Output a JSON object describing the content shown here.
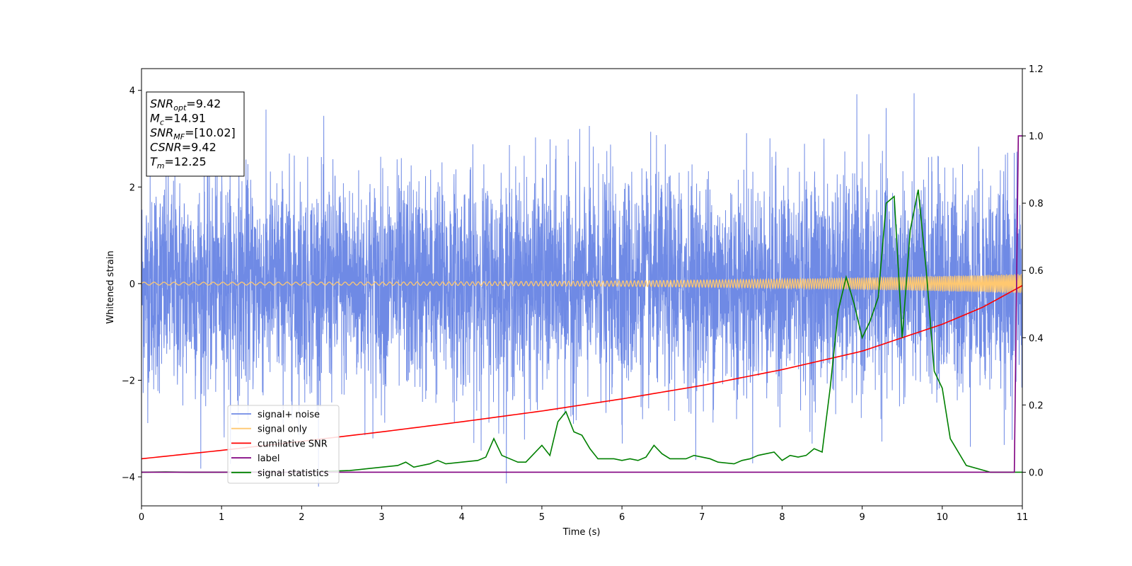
{
  "chart_data": {
    "type": "line",
    "xlabel": "Time (s)",
    "ylabel": "Whitened strain",
    "xlim": [
      0,
      11
    ],
    "ylim_left": [
      -4.6,
      4.45
    ],
    "ylim_right": [
      -0.1,
      1.2
    ],
    "x_ticks": [
      "0",
      "1",
      "2",
      "3",
      "4",
      "5",
      "6",
      "7",
      "8",
      "9",
      "10",
      "11"
    ],
    "y_ticks_left": [
      "-4",
      "-2",
      "0",
      "2",
      "4"
    ],
    "y_ticks_right": [
      "0.0",
      "0.2",
      "0.4",
      "0.6",
      "0.8",
      "1.0",
      "1.2"
    ],
    "info_box": [
      {
        "name": "SNR",
        "sub": "opt",
        "value": "=9.42"
      },
      {
        "name": "M",
        "sub": "c",
        "value": "=14.91"
      },
      {
        "name": "SNR",
        "sub": "MF",
        "value": "=[10.02]"
      },
      {
        "name": "CSNR",
        "sub": "",
        "value": "=9.42"
      },
      {
        "name": "T",
        "sub": "m",
        "value": "=12.25"
      }
    ],
    "legend_location": "lower-left",
    "series": [
      {
        "name": "signal+ noise",
        "axis": "left",
        "color": "#6f8ae5",
        "description_values": {
          "std": 1.0,
          "min": -4.2,
          "max": 4.02
        }
      },
      {
        "name": "signal only",
        "axis": "left",
        "color": "#ffc870",
        "amplitude_start": 0.03,
        "amplitude_end": 0.2
      },
      {
        "name": "cumilative SNR",
        "axis": "right",
        "color": "#ff0000",
        "x": [
          0,
          1,
          2,
          3,
          4,
          5,
          6,
          7,
          8,
          9,
          10,
          10.5,
          11
        ],
        "y": [
          0.04,
          0.065,
          0.092,
          0.12,
          0.15,
          0.182,
          0.218,
          0.258,
          0.305,
          0.36,
          0.44,
          0.49,
          0.555
        ]
      },
      {
        "name": "label",
        "axis": "right",
        "color": "#800080",
        "x": [
          0,
          10.9,
          10.95,
          11
        ],
        "y": [
          0.0,
          0.0,
          1.0,
          1.0
        ]
      },
      {
        "name": "signal statistics",
        "axis": "right",
        "color": "#008000",
        "x": [
          0,
          0.3,
          0.6,
          1.0,
          1.4,
          1.8,
          2.2,
          2.6,
          2.8,
          3.0,
          3.2,
          3.3,
          3.4,
          3.6,
          3.7,
          3.8,
          4.0,
          4.2,
          4.3,
          4.4,
          4.5,
          4.6,
          4.7,
          4.8,
          5.0,
          5.1,
          5.2,
          5.3,
          5.4,
          5.5,
          5.6,
          5.7,
          5.9,
          6.0,
          6.1,
          6.2,
          6.3,
          6.4,
          6.5,
          6.6,
          6.8,
          6.9,
          7.0,
          7.1,
          7.2,
          7.4,
          7.5,
          7.6,
          7.7,
          7.8,
          7.9,
          8.0,
          8.1,
          8.2,
          8.3,
          8.4,
          8.5,
          8.6,
          8.7,
          8.8,
          8.9,
          9.0,
          9.1,
          9.2,
          9.3,
          9.4,
          9.5,
          9.6,
          9.7,
          9.8,
          9.9,
          10.0,
          10.1,
          10.3,
          10.6,
          10.9,
          11.0
        ],
        "y": [
          0.0,
          0.001,
          0.0,
          0.0,
          0.001,
          0.0,
          0.002,
          0.005,
          0.01,
          0.015,
          0.02,
          0.03,
          0.015,
          0.025,
          0.035,
          0.025,
          0.03,
          0.035,
          0.045,
          0.1,
          0.05,
          0.04,
          0.03,
          0.03,
          0.08,
          0.05,
          0.15,
          0.18,
          0.12,
          0.11,
          0.07,
          0.04,
          0.04,
          0.035,
          0.04,
          0.035,
          0.045,
          0.08,
          0.055,
          0.04,
          0.04,
          0.05,
          0.045,
          0.04,
          0.03,
          0.025,
          0.035,
          0.04,
          0.05,
          0.055,
          0.06,
          0.035,
          0.05,
          0.045,
          0.05,
          0.07,
          0.06,
          0.25,
          0.48,
          0.58,
          0.5,
          0.4,
          0.45,
          0.52,
          0.8,
          0.82,
          0.4,
          0.72,
          0.84,
          0.6,
          0.3,
          0.25,
          0.1,
          0.02,
          0.0,
          0.0,
          0.0
        ]
      }
    ]
  }
}
